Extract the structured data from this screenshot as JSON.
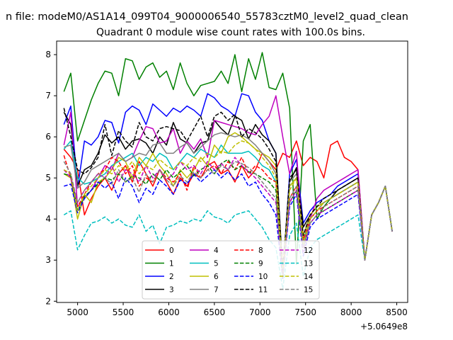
{
  "chart_data": {
    "type": "line",
    "title_top": "n file: modeM0/AS1A14_099T04_9000006540_55783cztM0_level2_quad_clean",
    "title": "Quadrant 0 module wise count rates with 100.0s bins.",
    "xlabel": "",
    "ylabel": "",
    "x_offset_label": "+5.0649e8",
    "xlim": [
      4770,
      8620
    ],
    "ylim": [
      1.97,
      8.33
    ],
    "xticks": [
      5000,
      5500,
      6000,
      6500,
      7000,
      7500,
      8000,
      8500
    ],
    "yticks": [
      2,
      3,
      4,
      5,
      6,
      7,
      8
    ],
    "grid": false,
    "legend_position": "lower-center",
    "x": [
      4850,
      4925,
      5000,
      5075,
      5150,
      5225,
      5300,
      5375,
      5450,
      5525,
      5600,
      5675,
      5750,
      5825,
      5900,
      5975,
      6050,
      6125,
      6200,
      6275,
      6350,
      6425,
      6500,
      6575,
      6650,
      6725,
      6800,
      6875,
      6950,
      7025,
      7100,
      7175,
      7250,
      7325,
      7400,
      7475,
      7550,
      7625,
      7700,
      7775,
      7850,
      7925,
      8000,
      8075,
      8150,
      8225,
      8300,
      8375,
      8450
    ],
    "series": [
      {
        "name": "0",
        "color": "#ff0000",
        "dash": "solid",
        "values": [
          5.7,
          5.5,
          5.2,
          4.1,
          4.5,
          4.8,
          5.0,
          4.7,
          5.1,
          5.3,
          4.9,
          5.4,
          5.1,
          4.8,
          5.2,
          4.9,
          4.6,
          5.0,
          4.8,
          5.1,
          5.0,
          5.3,
          5.4,
          5.1,
          5.2,
          4.9,
          5.3,
          5.0,
          5.2,
          5.6,
          5.4,
          5.2,
          5.6,
          5.5,
          5.9,
          5.3,
          5.5,
          5.4,
          5.0,
          5.8,
          5.9,
          5.5,
          5.4,
          5.2,
          3.0,
          4.1,
          4.4,
          4.8,
          3.7
        ]
      },
      {
        "name": "1",
        "color": "#008000",
        "dash": "solid",
        "values": [
          7.1,
          7.55,
          5.9,
          6.4,
          6.9,
          7.3,
          7.6,
          7.55,
          7.0,
          7.9,
          7.85,
          7.4,
          7.7,
          7.8,
          7.45,
          7.6,
          7.15,
          7.8,
          7.3,
          7.0,
          7.25,
          7.3,
          7.35,
          7.6,
          7.3,
          8.0,
          7.1,
          7.9,
          7.4,
          8.05,
          7.2,
          7.15,
          7.55,
          6.7,
          2.9,
          5.9,
          6.3,
          4.0,
          4.3,
          4.5,
          4.6,
          4.7,
          4.8,
          4.9,
          3.0,
          4.1,
          4.4,
          4.8,
          3.7
        ]
      },
      {
        "name": "2",
        "color": "#0000ff",
        "dash": "solid",
        "values": [
          6.3,
          6.75,
          4.75,
          5.9,
          5.8,
          6.0,
          6.4,
          6.35,
          5.85,
          6.6,
          6.75,
          6.65,
          6.3,
          6.8,
          6.65,
          6.5,
          6.7,
          6.6,
          6.75,
          6.65,
          6.5,
          7.05,
          6.95,
          6.75,
          6.65,
          6.5,
          7.05,
          7.0,
          6.6,
          6.4,
          5.9,
          5.6,
          2.6,
          5.1,
          5.45,
          3.9,
          4.2,
          4.4,
          4.5,
          4.6,
          4.8,
          4.9,
          5.0,
          5.1,
          3.0,
          4.1,
          4.4,
          4.8,
          3.7
        ]
      },
      {
        "name": "3",
        "color": "#000000",
        "dash": "solid",
        "values": [
          6.6,
          6.3,
          4.8,
          5.2,
          5.3,
          5.6,
          6.05,
          5.85,
          6.0,
          5.7,
          5.9,
          5.95,
          5.85,
          5.6,
          6.0,
          5.8,
          6.35,
          5.95,
          5.85,
          5.6,
          5.85,
          5.9,
          6.4,
          6.2,
          6.05,
          6.5,
          6.4,
          5.95,
          6.3,
          6.05,
          5.9,
          5.6,
          2.7,
          4.9,
          5.25,
          3.8,
          4.1,
          4.3,
          4.4,
          4.5,
          4.7,
          4.8,
          4.9,
          5.0,
          3.0,
          4.1,
          4.4,
          4.8,
          3.7
        ]
      },
      {
        "name": "4",
        "color": "#bf00bf",
        "dash": "solid",
        "values": [
          5.8,
          6.6,
          4.3,
          4.5,
          4.7,
          5.0,
          5.3,
          5.2,
          5.6,
          5.4,
          5.5,
          5.9,
          6.25,
          6.2,
          5.85,
          5.9,
          6.2,
          5.6,
          5.9,
          5.7,
          5.95,
          5.5,
          6.4,
          6.35,
          6.3,
          6.25,
          6.2,
          6.1,
          6.05,
          6.3,
          6.5,
          7.0,
          6.0,
          5.1,
          5.65,
          3.3,
          4.0,
          4.5,
          4.7,
          4.8,
          4.9,
          5.0,
          5.1,
          5.2,
          3.0,
          4.1,
          4.4,
          4.8,
          3.7
        ]
      },
      {
        "name": "5",
        "color": "#00bfbf",
        "dash": "solid",
        "values": [
          5.7,
          5.9,
          5.0,
          4.85,
          4.9,
          5.0,
          5.1,
          5.3,
          5.4,
          5.5,
          5.6,
          5.3,
          5.5,
          5.4,
          5.6,
          5.5,
          5.2,
          5.4,
          5.6,
          5.5,
          5.7,
          5.6,
          5.5,
          5.8,
          5.6,
          5.6,
          5.6,
          5.65,
          5.5,
          5.3,
          5.2,
          4.9,
          2.6,
          4.8,
          5.0,
          3.5,
          4.0,
          4.2,
          4.4,
          4.5,
          4.6,
          4.7,
          4.8,
          4.9,
          3.0,
          4.1,
          4.4,
          4.8,
          3.7
        ]
      },
      {
        "name": "6",
        "color": "#bfbf00",
        "dash": "solid",
        "values": [
          5.1,
          5.0,
          4.0,
          4.6,
          4.4,
          4.9,
          5.0,
          5.2,
          5.5,
          5.4,
          5.0,
          5.5,
          5.3,
          5.6,
          5.3,
          5.1,
          4.8,
          5.2,
          5.0,
          5.2,
          5.5,
          5.3,
          5.8,
          5.6,
          6.0,
          6.1,
          6.0,
          5.85,
          5.7,
          5.6,
          5.5,
          5.3,
          2.65,
          4.8,
          5.0,
          3.6,
          4.1,
          4.3,
          4.4,
          4.5,
          4.6,
          4.7,
          4.8,
          4.9,
          3.0,
          4.1,
          4.4,
          4.8,
          3.7
        ]
      },
      {
        "name": "7",
        "color": "#808080",
        "dash": "solid",
        "values": [
          5.75,
          5.8,
          4.75,
          4.9,
          5.2,
          5.3,
          5.4,
          5.5,
          5.6,
          5.4,
          5.5,
          5.6,
          5.55,
          5.8,
          5.85,
          5.6,
          5.6,
          5.75,
          5.85,
          5.6,
          5.75,
          5.9,
          6.05,
          6.1,
          6.05,
          6.0,
          6.05,
          5.95,
          5.8,
          5.6,
          5.4,
          5.1,
          2.55,
          4.9,
          5.1,
          3.4,
          4.0,
          4.2,
          4.4,
          4.5,
          4.6,
          4.7,
          4.8,
          4.9,
          3.0,
          4.1,
          4.4,
          4.8,
          3.7
        ]
      },
      {
        "name": "8",
        "color": "#ff0000",
        "dash": "dashed",
        "values": [
          5.55,
          5.0,
          4.3,
          4.6,
          4.9,
          5.1,
          5.2,
          5.5,
          5.4,
          5.1,
          5.3,
          4.8,
          5.0,
          4.9,
          5.2,
          5.0,
          4.9,
          5.1,
          4.7,
          5.3,
          5.0,
          5.2,
          5.3,
          5.1,
          5.4,
          5.2,
          5.5,
          5.1,
          5.3,
          5.2,
          5.0,
          4.9,
          2.8,
          4.5,
          4.8,
          3.5,
          4.0,
          4.2,
          4.3,
          4.4,
          4.5,
          4.6,
          4.7,
          4.8,
          3.0,
          4.1,
          4.4,
          4.8,
          3.7
        ]
      },
      {
        "name": "9",
        "color": "#008000",
        "dash": "dashed",
        "values": [
          5.1,
          5.05,
          4.2,
          4.55,
          4.7,
          4.85,
          5.0,
          4.95,
          5.1,
          4.9,
          5.05,
          5.0,
          4.85,
          5.1,
          4.95,
          5.2,
          5.0,
          5.15,
          5.3,
          5.05,
          5.2,
          5.3,
          5.1,
          5.35,
          5.45,
          5.2,
          5.3,
          5.15,
          5.1,
          5.0,
          4.9,
          4.7,
          2.7,
          4.4,
          4.7,
          3.3,
          3.9,
          4.1,
          4.2,
          4.3,
          4.4,
          4.5,
          4.6,
          4.7,
          3.0,
          4.1,
          4.4,
          4.8,
          3.7
        ]
      },
      {
        "name": "10",
        "color": "#0000ff",
        "dash": "dashed",
        "values": [
          4.8,
          4.85,
          4.15,
          4.5,
          4.7,
          4.9,
          4.75,
          4.9,
          4.5,
          5.0,
          4.8,
          4.4,
          4.75,
          4.6,
          4.95,
          4.8,
          4.6,
          4.95,
          4.85,
          5.1,
          4.9,
          5.05,
          5.2,
          5.0,
          5.15,
          4.95,
          5.1,
          4.8,
          4.9,
          4.6,
          4.4,
          4.1,
          2.55,
          4.3,
          4.6,
          3.1,
          3.8,
          4.0,
          4.1,
          4.2,
          4.3,
          4.4,
          4.5,
          4.6,
          3.0,
          4.1,
          4.4,
          4.8,
          3.7
        ]
      },
      {
        "name": "11",
        "color": "#000000",
        "dash": "dashed",
        "values": [
          6.7,
          6.0,
          5.2,
          5.1,
          5.25,
          5.5,
          6.3,
          5.55,
          6.15,
          5.9,
          5.75,
          6.35,
          6.0,
          5.9,
          6.2,
          6.25,
          6.2,
          6.15,
          5.9,
          6.2,
          6.5,
          6.0,
          6.5,
          6.6,
          6.4,
          6.55,
          6.0,
          6.2,
          6.1,
          5.95,
          5.7,
          5.4,
          2.75,
          5.0,
          5.2,
          3.6,
          4.1,
          4.3,
          4.5,
          4.6,
          4.7,
          4.8,
          4.9,
          5.0,
          3.0,
          4.1,
          4.4,
          4.8,
          3.7
        ]
      },
      {
        "name": "12",
        "color": "#bf00bf",
        "dash": "dashed",
        "values": [
          5.2,
          5.0,
          4.4,
          4.7,
          4.9,
          5.1,
          5.0,
          5.3,
          4.9,
          5.2,
          5.1,
          4.9,
          5.3,
          5.0,
          5.2,
          4.95,
          5.1,
          5.4,
          5.2,
          5.3,
          5.1,
          5.4,
          5.2,
          5.35,
          5.2,
          5.5,
          5.3,
          5.15,
          5.0,
          4.8,
          4.6,
          4.4,
          2.6,
          4.4,
          4.7,
          3.2,
          3.9,
          4.1,
          4.2,
          4.3,
          4.4,
          4.5,
          4.6,
          4.7,
          3.0,
          4.1,
          4.4,
          4.8,
          3.7
        ]
      },
      {
        "name": "13",
        "color": "#00bfbf",
        "dash": "dashed",
        "values": [
          4.1,
          4.2,
          3.25,
          3.6,
          3.9,
          3.95,
          4.05,
          3.9,
          4.0,
          3.85,
          3.8,
          4.1,
          3.7,
          3.85,
          3.4,
          3.8,
          3.85,
          3.95,
          3.9,
          4.0,
          3.95,
          4.2,
          4.05,
          4.0,
          3.9,
          4.1,
          4.15,
          4.2,
          4.0,
          3.8,
          3.5,
          3.3,
          2.3,
          3.6,
          3.9,
          2.6,
          3.3,
          3.5,
          3.6,
          3.7,
          3.8,
          3.9,
          4.0,
          4.1,
          3.0,
          4.1,
          4.4,
          4.8,
          3.7
        ]
      },
      {
        "name": "14",
        "color": "#bfbf00",
        "dash": "dashed",
        "values": [
          5.2,
          5.1,
          4.2,
          4.6,
          4.8,
          5.0,
          5.2,
          5.1,
          5.3,
          5.2,
          5.4,
          5.1,
          5.3,
          5.2,
          5.45,
          5.3,
          5.2,
          5.4,
          5.3,
          5.5,
          5.4,
          5.6,
          5.5,
          5.65,
          5.6,
          5.8,
          5.9,
          5.85,
          5.7,
          5.5,
          5.3,
          5.0,
          2.7,
          4.7,
          5.0,
          3.4,
          4.0,
          4.2,
          4.4,
          4.5,
          4.6,
          4.7,
          4.8,
          4.9,
          3.0,
          4.1,
          4.4,
          4.8,
          3.7
        ]
      },
      {
        "name": "15",
        "color": "#808080",
        "dash": "dashed",
        "values": [
          5.4,
          5.1,
          4.4,
          4.7,
          4.9,
          5.1,
          5.0,
          4.85,
          5.2,
          4.9,
          5.0,
          4.65,
          5.1,
          4.9,
          5.2,
          4.95,
          4.8,
          5.05,
          4.9,
          5.15,
          5.0,
          5.2,
          5.1,
          5.3,
          5.2,
          5.4,
          5.35,
          5.25,
          5.1,
          4.9,
          4.7,
          4.5,
          2.6,
          4.5,
          4.8,
          3.3,
          3.9,
          4.1,
          4.3,
          4.4,
          4.5,
          4.6,
          4.7,
          4.8,
          3.0,
          4.1,
          4.4,
          4.8,
          3.7
        ]
      }
    ]
  }
}
